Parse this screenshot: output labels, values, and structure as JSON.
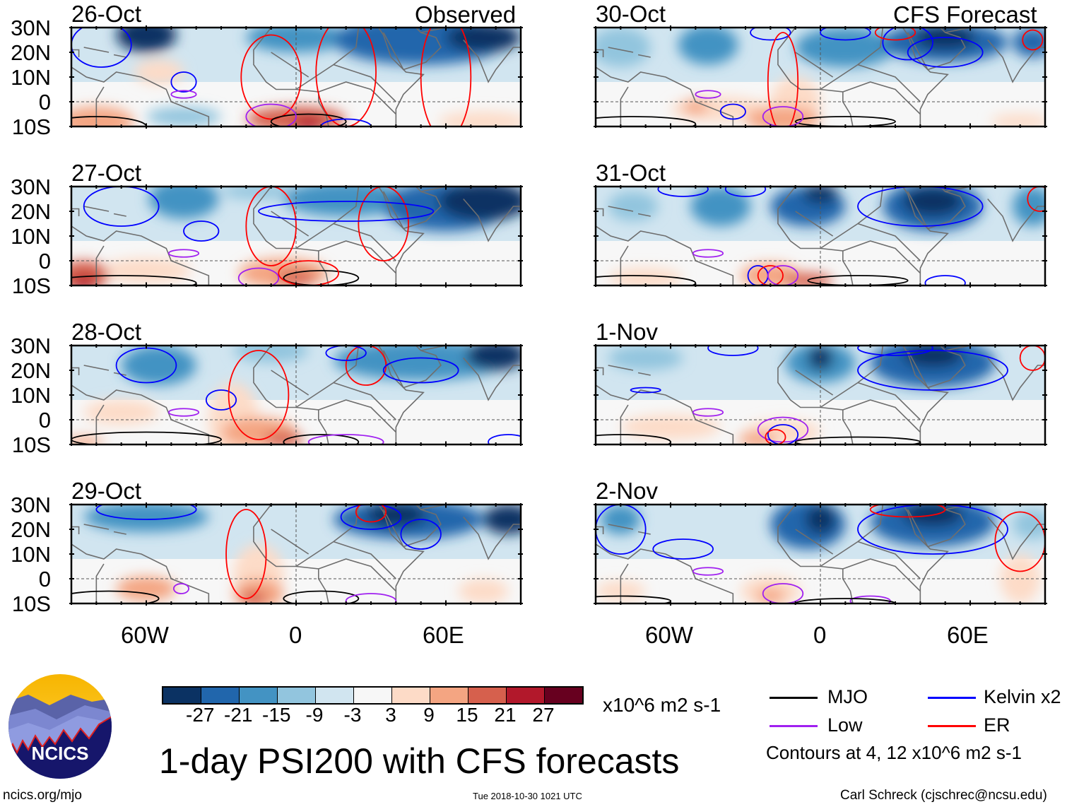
{
  "title": "1-day PSI200 with CFS forecasts",
  "logo_text": "NCICS",
  "footer": {
    "url": "ncics.org/mjo",
    "timestamp": "Tue 2018-10-30 1021 UTC",
    "author": "Carl Schreck (cjschrec@ncsu.edu)"
  },
  "column_labels": {
    "left": "Observed",
    "right": "CFS Forecast"
  },
  "lat_labels": [
    "30N",
    "20N",
    "10N",
    "0",
    "10S"
  ],
  "lon_labels": [
    "60W",
    "0",
    "60E"
  ],
  "colorbar": {
    "units": "x10^6 m2 s-1",
    "labels": [
      "-27",
      "-21",
      "-15",
      "-9",
      "-3",
      "3",
      "9",
      "15",
      "21",
      "27"
    ],
    "colors": [
      "#0b3263",
      "#2166ac",
      "#4393c3",
      "#92c5de",
      "#d1e5f0",
      "#f7f7f7",
      "#fddbc7",
      "#f4a582",
      "#d6604d",
      "#b2182b",
      "#67001f"
    ]
  },
  "legend": {
    "items": [
      {
        "label": "MJO",
        "color": "#000000"
      },
      {
        "label": "Kelvin x2",
        "color": "#0000ff"
      },
      {
        "label": "Low",
        "color": "#a020f0"
      },
      {
        "label": "ER",
        "color": "#ff0000"
      }
    ],
    "contours_note": "Contours at 4, 12 x10^6 m2 s-1"
  },
  "panels": [
    {
      "date": "26-Oct",
      "blobs": [
        [
          -60,
          27,
          12,
          7,
          -27
        ],
        [
          0,
          26,
          20,
          6,
          -15
        ],
        [
          50,
          25,
          35,
          10,
          -21
        ],
        [
          75,
          26,
          15,
          6,
          -27
        ],
        [
          -55,
          12,
          10,
          5,
          9
        ],
        [
          -80,
          -8,
          15,
          6,
          15
        ],
        [
          0,
          -7,
          20,
          5,
          21
        ],
        [
          5,
          -9,
          6,
          3,
          27
        ],
        [
          75,
          -8,
          18,
          4,
          9
        ],
        [
          -45,
          -6,
          15,
          4,
          -9
        ]
      ],
      "contours": [
        [
          "K",
          -78,
          23,
          12,
          9
        ],
        [
          "K",
          -45,
          8,
          5,
          4
        ],
        [
          "L",
          -45,
          3,
          5,
          1.5
        ],
        [
          "ER",
          -10,
          10,
          12,
          17
        ],
        [
          "ER",
          20,
          12,
          12,
          22
        ],
        [
          "ER",
          60,
          10,
          10,
          25
        ],
        [
          "MJO",
          -80,
          -10,
          20,
          4
        ],
        [
          "MJO",
          5,
          -8,
          15,
          3
        ],
        [
          "L",
          -10,
          -6,
          10,
          5
        ],
        [
          "K",
          20,
          -10,
          10,
          3
        ]
      ]
    },
    {
      "date": "27-Oct",
      "blobs": [
        [
          -45,
          25,
          14,
          8,
          -15
        ],
        [
          -15,
          28,
          15,
          3,
          -9
        ],
        [
          20,
          25,
          25,
          7,
          -15
        ],
        [
          75,
          24,
          18,
          8,
          -27
        ],
        [
          60,
          22,
          25,
          10,
          -21
        ],
        [
          -85,
          -6,
          10,
          6,
          21
        ],
        [
          -85,
          -9,
          5,
          3,
          27
        ],
        [
          -60,
          -4,
          18,
          5,
          9
        ],
        [
          -5,
          -5,
          18,
          6,
          15
        ],
        [
          0,
          -7,
          8,
          3,
          21
        ]
      ],
      "contours": [
        [
          "K",
          -70,
          22,
          15,
          8
        ],
        [
          "K",
          -38,
          12,
          7,
          4
        ],
        [
          "L",
          -45,
          3,
          6,
          1.5
        ],
        [
          "ER",
          -10,
          14,
          10,
          16
        ],
        [
          "ER",
          35,
          15,
          10,
          15
        ],
        [
          "K",
          20,
          20,
          35,
          4
        ],
        [
          "MJO",
          -70,
          -9,
          30,
          3
        ],
        [
          "MJO",
          10,
          -7,
          15,
          3
        ],
        [
          "L",
          -15,
          -7,
          8,
          4
        ],
        [
          "ER",
          5,
          -5,
          12,
          5
        ]
      ]
    },
    {
      "date": "28-Oct",
      "blobs": [
        [
          -55,
          22,
          15,
          8,
          -15
        ],
        [
          -10,
          28,
          15,
          5,
          -9
        ],
        [
          50,
          24,
          35,
          8,
          -15
        ],
        [
          80,
          26,
          12,
          6,
          -27
        ],
        [
          -70,
          3,
          15,
          5,
          6
        ],
        [
          -25,
          0,
          10,
          15,
          6
        ],
        [
          -15,
          -5,
          15,
          6,
          15
        ],
        [
          -5,
          -8,
          8,
          3,
          21
        ],
        [
          -85,
          -9,
          8,
          2,
          15
        ]
      ],
      "contours": [
        [
          "K",
          -60,
          22,
          12,
          7
        ],
        [
          "K",
          -30,
          8,
          6,
          4
        ],
        [
          "L",
          -45,
          3,
          6,
          1.5
        ],
        [
          "ER",
          -15,
          10,
          12,
          18
        ],
        [
          "ER",
          28,
          22,
          8,
          8
        ],
        [
          "K",
          50,
          20,
          15,
          5
        ],
        [
          "K",
          20,
          27,
          8,
          3
        ],
        [
          "MJO",
          -60,
          -8,
          30,
          3
        ],
        [
          "MJO",
          10,
          -9,
          15,
          3
        ],
        [
          "L",
          20,
          -9,
          15,
          3
        ],
        [
          "K",
          85,
          -9,
          8,
          3
        ]
      ]
    },
    {
      "date": "29-Oct",
      "blobs": [
        [
          -60,
          25,
          25,
          6,
          -15
        ],
        [
          45,
          24,
          30,
          8,
          -21
        ],
        [
          40,
          26,
          12,
          5,
          -27
        ],
        [
          85,
          24,
          10,
          6,
          -27
        ],
        [
          -60,
          -4,
          12,
          5,
          15
        ],
        [
          -15,
          2,
          10,
          12,
          6
        ],
        [
          -15,
          -6,
          10,
          6,
          15
        ],
        [
          -17,
          -8,
          5,
          3,
          21
        ],
        [
          75,
          -5,
          10,
          5,
          6
        ]
      ],
      "contours": [
        [
          "K",
          -60,
          28,
          20,
          4
        ],
        [
          "K",
          30,
          25,
          12,
          5
        ],
        [
          "K",
          50,
          18,
          8,
          6
        ],
        [
          "ER",
          -20,
          10,
          8,
          18
        ],
        [
          "ER",
          30,
          27,
          6,
          4
        ],
        [
          "L",
          -46,
          -4,
          3,
          2
        ],
        [
          "MJO",
          -75,
          -8,
          20,
          3
        ],
        [
          "MJO",
          10,
          -8,
          15,
          3
        ],
        [
          "L",
          30,
          -9,
          10,
          3
        ]
      ]
    },
    {
      "date": "30-Oct",
      "blobs": [
        [
          -80,
          22,
          12,
          8,
          -9
        ],
        [
          -45,
          23,
          12,
          8,
          -15
        ],
        [
          10,
          22,
          20,
          8,
          -15
        ],
        [
          50,
          24,
          25,
          8,
          -21
        ],
        [
          50,
          26,
          12,
          5,
          -27
        ],
        [
          85,
          24,
          8,
          6,
          -21
        ],
        [
          -40,
          -3,
          20,
          5,
          9
        ],
        [
          -50,
          -2,
          5,
          3,
          15
        ],
        [
          -15,
          -7,
          15,
          5,
          15
        ],
        [
          -10,
          0,
          10,
          10,
          6
        ],
        [
          80,
          -8,
          12,
          3,
          9
        ]
      ],
      "contours": [
        [
          "K",
          10,
          28,
          10,
          3
        ],
        [
          "K",
          35,
          24,
          10,
          7
        ],
        [
          "K",
          -20,
          28,
          8,
          3
        ],
        [
          "K",
          50,
          20,
          15,
          6
        ],
        [
          "ER",
          -15,
          8,
          6,
          20
        ],
        [
          "ER",
          30,
          28,
          8,
          3
        ],
        [
          "ER",
          85,
          25,
          4,
          4
        ],
        [
          "L",
          -45,
          3,
          5,
          1.5
        ],
        [
          "K",
          -35,
          -4,
          5,
          3
        ],
        [
          "MJO",
          -75,
          -9,
          25,
          3
        ],
        [
          "MJO",
          10,
          -8,
          20,
          2
        ],
        [
          "L",
          -15,
          -6,
          8,
          4
        ]
      ]
    },
    {
      "date": "31-Oct",
      "blobs": [
        [
          -75,
          22,
          10,
          6,
          -9
        ],
        [
          -40,
          22,
          12,
          8,
          -15
        ],
        [
          -5,
          22,
          15,
          8,
          -21
        ],
        [
          0,
          27,
          7,
          4,
          -27
        ],
        [
          45,
          22,
          20,
          10,
          -21
        ],
        [
          45,
          24,
          12,
          6,
          -27
        ],
        [
          85,
          22,
          8,
          8,
          -15
        ],
        [
          -70,
          -7,
          15,
          4,
          9
        ],
        [
          -20,
          -6,
          12,
          5,
          15
        ],
        [
          -5,
          -8,
          10,
          3,
          21
        ]
      ],
      "contours": [
        [
          "K",
          -55,
          29,
          10,
          3
        ],
        [
          "K",
          -30,
          29,
          8,
          3
        ],
        [
          "K",
          40,
          22,
          25,
          8
        ],
        [
          "ER",
          88,
          25,
          5,
          5
        ],
        [
          "L",
          -45,
          3,
          6,
          1.5
        ],
        [
          "K",
          -25,
          -6,
          4,
          4
        ],
        [
          "ER",
          -20,
          -6,
          5,
          4
        ],
        [
          "L",
          -15,
          -6,
          6,
          4
        ],
        [
          "MJO",
          -75,
          -9,
          25,
          3
        ],
        [
          "MJO",
          15,
          -8,
          20,
          2
        ],
        [
          "K",
          50,
          -9,
          8,
          3
        ]
      ]
    },
    {
      "date": "1-Nov",
      "blobs": [
        [
          -70,
          25,
          15,
          5,
          -9
        ],
        [
          0,
          23,
          14,
          8,
          -15
        ],
        [
          0,
          25,
          5,
          5,
          -27
        ],
        [
          45,
          23,
          25,
          10,
          -21
        ],
        [
          45,
          26,
          12,
          5,
          -27
        ],
        [
          -60,
          -3,
          20,
          5,
          6
        ],
        [
          -15,
          -5,
          15,
          5,
          9
        ],
        [
          -25,
          -8,
          8,
          3,
          15
        ]
      ],
      "contours": [
        [
          "K",
          -35,
          29,
          10,
          3
        ],
        [
          "K",
          30,
          29,
          15,
          3
        ],
        [
          "K",
          45,
          20,
          30,
          8
        ],
        [
          "ER",
          85,
          25,
          5,
          5
        ],
        [
          "K",
          -70,
          12,
          6,
          1
        ],
        [
          "L",
          -45,
          3,
          6,
          1.5
        ],
        [
          "L",
          -15,
          -4,
          10,
          5
        ],
        [
          "K",
          -15,
          -6,
          6,
          4
        ],
        [
          "ER",
          -18,
          -7,
          4,
          3
        ],
        [
          "MJO",
          -80,
          -9,
          20,
          3
        ],
        [
          "MJO",
          15,
          -9,
          25,
          2
        ]
      ]
    },
    {
      "date": "2-Nov",
      "blobs": [
        [
          -80,
          24,
          8,
          6,
          -15
        ],
        [
          -5,
          22,
          15,
          10,
          -21
        ],
        [
          0,
          24,
          6,
          6,
          -27
        ],
        [
          45,
          23,
          25,
          10,
          -21
        ],
        [
          45,
          26,
          12,
          5,
          -27
        ],
        [
          85,
          22,
          8,
          6,
          -9
        ],
        [
          -80,
          -5,
          10,
          4,
          9
        ],
        [
          -20,
          -5,
          12,
          6,
          9
        ],
        [
          -20,
          -7,
          6,
          3,
          15
        ],
        [
          80,
          0,
          8,
          10,
          6
        ]
      ],
      "contours": [
        [
          "K",
          -80,
          20,
          10,
          10
        ],
        [
          "K",
          -55,
          12,
          12,
          4
        ],
        [
          "K",
          45,
          20,
          30,
          10
        ],
        [
          "ER",
          35,
          28,
          15,
          3
        ],
        [
          "ER",
          80,
          15,
          10,
          12
        ],
        [
          "L",
          -45,
          3,
          6,
          1.5
        ],
        [
          "L",
          -15,
          -6,
          8,
          4
        ],
        [
          "L",
          20,
          -9,
          8,
          2
        ],
        [
          "MJO",
          -80,
          -9,
          20,
          2
        ],
        [
          "MJO",
          10,
          -10,
          20,
          2
        ]
      ]
    }
  ]
}
